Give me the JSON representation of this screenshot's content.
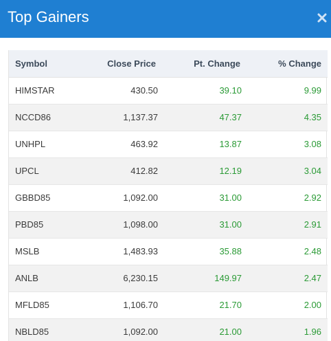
{
  "modal": {
    "title": "Top Gainers",
    "close_icon": "close-icon"
  },
  "colors": {
    "header_bg": "#1f7fd2",
    "positive": "#2a9a35",
    "table_header_bg": "#eef1f6"
  },
  "table": {
    "columns": [
      "Symbol",
      "Close Price",
      "Pt. Change",
      "% Change"
    ],
    "rows": [
      {
        "symbol": "HIMSTAR",
        "close": "430.50",
        "pt": "39.10",
        "pct": "9.99"
      },
      {
        "symbol": "NCCD86",
        "close": "1,137.37",
        "pt": "47.37",
        "pct": "4.35"
      },
      {
        "symbol": "UNHPL",
        "close": "463.92",
        "pt": "13.87",
        "pct": "3.08"
      },
      {
        "symbol": "UPCL",
        "close": "412.82",
        "pt": "12.19",
        "pct": "3.04"
      },
      {
        "symbol": "GBBD85",
        "close": "1,092.00",
        "pt": "31.00",
        "pct": "2.92"
      },
      {
        "symbol": "PBD85",
        "close": "1,098.00",
        "pt": "31.00",
        "pct": "2.91"
      },
      {
        "symbol": "MSLB",
        "close": "1,483.93",
        "pt": "35.88",
        "pct": "2.48"
      },
      {
        "symbol": "ANLB",
        "close": "6,230.15",
        "pt": "149.97",
        "pct": "2.47"
      },
      {
        "symbol": "MFLD85",
        "close": "1,106.70",
        "pt": "21.70",
        "pct": "2.00"
      },
      {
        "symbol": "NBLD85",
        "close": "1,092.00",
        "pt": "21.00",
        "pct": "1.96"
      }
    ]
  }
}
